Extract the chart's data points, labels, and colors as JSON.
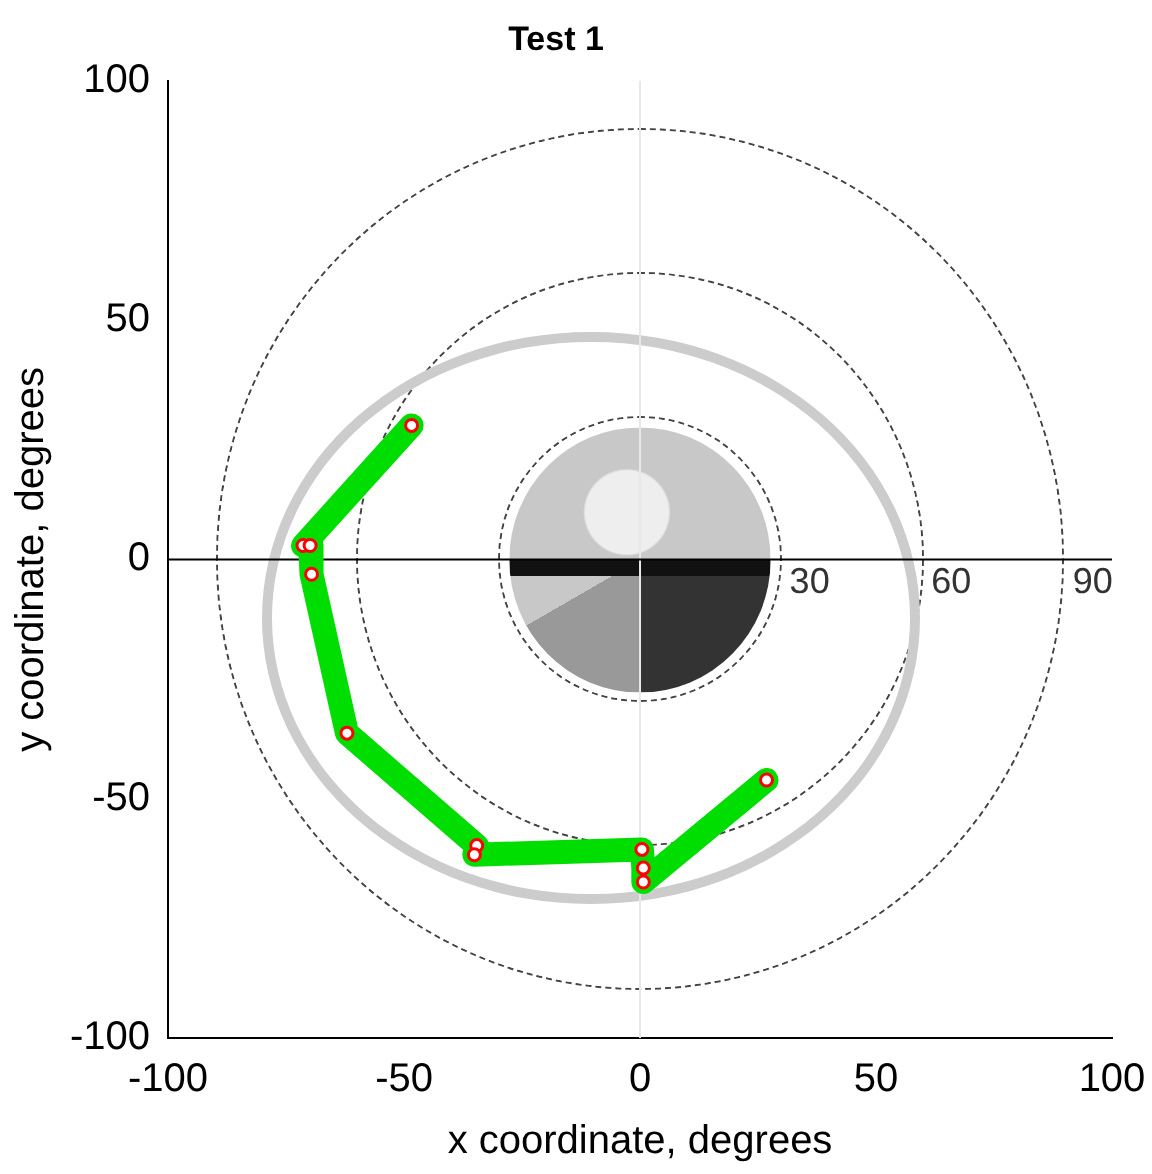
{
  "chart_data": {
    "type": "line",
    "title": "Test 1",
    "xlabel": "x coordinate, degrees",
    "ylabel": "y coordinate, degrees",
    "xlim": [
      -100,
      100
    ],
    "ylim": [
      -100,
      100
    ],
    "xticks": [
      -100,
      -50,
      0,
      50,
      100
    ],
    "yticks": [
      -100,
      -50,
      0,
      50,
      100
    ],
    "grid": false,
    "legend": false,
    "annotations": [
      {
        "text": "30",
        "x": 30,
        "y": 0
      },
      {
        "text": "60",
        "x": 60,
        "y": 0
      },
      {
        "text": "90",
        "x": 90,
        "y": 0
      }
    ],
    "ref_lines": [
      {
        "axis": "x",
        "value": 0,
        "color": "#e8e8e8"
      },
      {
        "axis": "y",
        "value": 0,
        "color": "#000000"
      }
    ],
    "series": [
      {
        "type": "line",
        "color": "#00dd00",
        "line_style": "solid",
        "marker": "circle",
        "x": [
          -48.4,
          -71.4,
          -69.9,
          -69.6,
          -62.1,
          -34.6,
          -35.1,
          0.4,
          0.7,
          0.7,
          26.8
        ],
        "values": [
          28.0,
          2.9,
          2.9,
          -3.1,
          -36.3,
          -59.8,
          -61.7,
          -60.6,
          -64.5,
          -67.4,
          -46.1
        ]
      }
    ]
  }
}
